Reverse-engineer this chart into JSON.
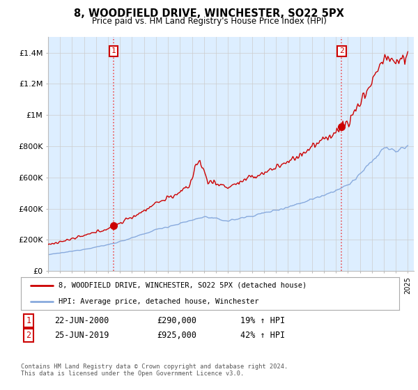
{
  "title": "8, WOODFIELD DRIVE, WINCHESTER, SO22 5PX",
  "subtitle": "Price paid vs. HM Land Registry's House Price Index (HPI)",
  "ylim": [
    0,
    1500000
  ],
  "yticks": [
    0,
    200000,
    400000,
    600000,
    800000,
    1000000,
    1200000,
    1400000
  ],
  "ytick_labels": [
    "£0",
    "£200K",
    "£400K",
    "£600K",
    "£800K",
    "£1M",
    "£1.2M",
    "£1.4M"
  ],
  "xlim_start": 1995.0,
  "xlim_end": 2025.5,
  "sale1_x": 2000.472,
  "sale1_y": 290000,
  "sale2_x": 2019.479,
  "sale2_y": 925000,
  "sale1_label": "22-JUN-2000",
  "sale1_price": "£290,000",
  "sale1_hpi": "19% ↑ HPI",
  "sale2_label": "25-JUN-2019",
  "sale2_price": "£925,000",
  "sale2_hpi": "42% ↑ HPI",
  "line1_color": "#cc0000",
  "line2_color": "#88aadd",
  "vline_color": "#ee3333",
  "grid_color": "#cccccc",
  "plot_bg_color": "#ddeeff",
  "legend1_label": "8, WOODFIELD DRIVE, WINCHESTER, SO22 5PX (detached house)",
  "legend2_label": "HPI: Average price, detached house, Winchester",
  "footer": "Contains HM Land Registry data © Crown copyright and database right 2024.\nThis data is licensed under the Open Government Licence v3.0.",
  "background_color": "#ffffff"
}
